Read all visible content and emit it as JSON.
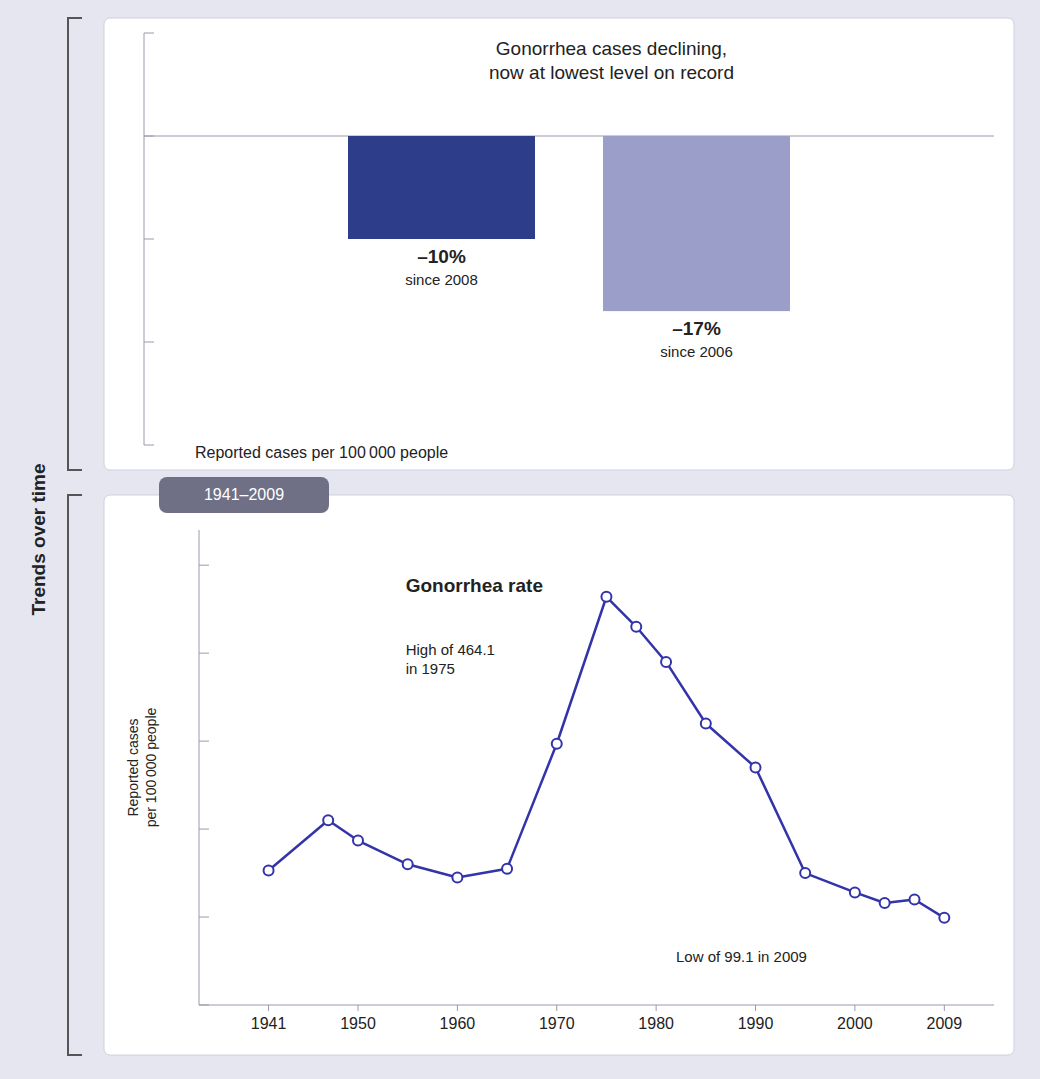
{
  "title": "Trends over time",
  "chart_data": [
    {
      "type": "bar",
      "title": "Gonorrhea cases declining,\nnow at lowest level on record",
      "xlabel": "Reported cases per 100 000 people",
      "categories": [
        "since 2008",
        "since 2006"
      ],
      "values": [
        -10,
        -17
      ],
      "value_labels": [
        "–10%",
        "–17%"
      ],
      "data_labels": true,
      "colors": [
        "#2e3d8a",
        "#9b9ec8"
      ],
      "ylim": [
        -30,
        10
      ],
      "yticks": [
        -30,
        -20,
        -10,
        0,
        10
      ],
      "tick_labels": "x",
      "grid": false
    },
    {
      "type": "line",
      "title": "Gonorrhea rate",
      "subtitle": "1941–2009",
      "ylabel": "Reported cases\nper 100 000 people",
      "annotations": [
        "High of 464.1\nin 1975",
        "Low of 99.1 in 2009"
      ],
      "x": [
        1941,
        1947,
        1950,
        1955,
        1960,
        1965,
        1970,
        1975,
        1978,
        1981,
        1985,
        1990,
        1995,
        2000,
        2003,
        2006,
        2009
      ],
      "values": [
        153,
        210,
        187,
        160,
        145,
        155,
        297,
        464.1,
        430,
        390,
        320,
        270,
        150,
        128,
        116,
        120,
        99.1
      ],
      "color": "#3333aa",
      "marker": "circle",
      "xlim": [
        1934,
        2014
      ],
      "xticks": [
        1941,
        1950,
        1960,
        1970,
        1980,
        1990,
        2000,
        2009
      ],
      "ylim": [
        0,
        540
      ],
      "yticks": [
        0,
        100,
        200,
        300,
        400,
        500
      ],
      "tick_labels": "x",
      "grid": false
    }
  ]
}
